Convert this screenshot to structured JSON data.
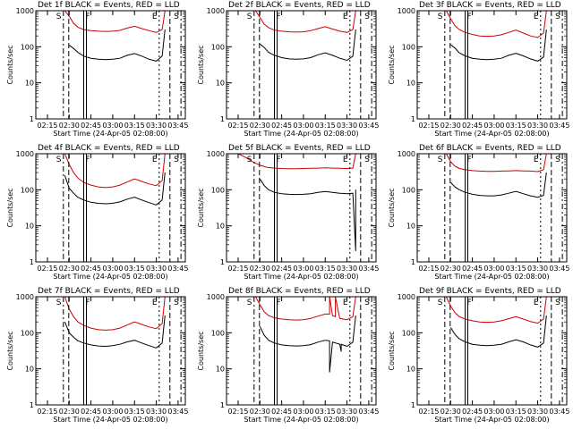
{
  "figure": {
    "common": {
      "ylabel": "Counts/sec",
      "xlabel": "Start Time (24-Apr-05 02:08:00)",
      "xticks": [
        "02:15",
        "02:30",
        "02:45",
        "03:00",
        "03:15",
        "03:30",
        "03:45"
      ],
      "xtick_minutes": [
        15,
        30,
        45,
        60,
        75,
        90,
        105
      ],
      "yticks": [
        "1",
        "10",
        "100",
        "1000"
      ],
      "ytick_values": [
        1,
        10,
        100,
        1000
      ],
      "xlim_minutes": [
        7,
        110
      ],
      "ylim": [
        1,
        1000
      ],
      "yscale": "log",
      "marker_labels": {
        "S": "S",
        "F": "F",
        "E": "E"
      },
      "colors": {
        "events": "#000000",
        "lld": "#cc0000",
        "axes": "#000000"
      }
    }
  },
  "chart_data": [
    {
      "type": "line",
      "title": "Det 1f BLACK = Events, RED = LLD",
      "xlabel": "Start Time (24-Apr-05 02:08:00)",
      "ylabel": "Counts/sec",
      "xlim": [
        "02:07",
        "03:50"
      ],
      "ylim": [
        1,
        1000
      ],
      "yscale": "log",
      "markers": {
        "S": "02:26",
        "F": "02:40",
        "E": "03:32",
        "S2": "03:47"
      },
      "series": [
        {
          "name": "BLACK = Events",
          "color": "#000000",
          "x": [
            "02:30",
            "02:33",
            "02:36",
            "02:40",
            "02:45",
            "02:50",
            "02:55",
            "03:00",
            "03:05",
            "03:10",
            "03:15",
            "03:20",
            "03:25",
            "03:30",
            "03:34",
            "03:36"
          ],
          "y": [
            110,
            90,
            70,
            55,
            48,
            45,
            44,
            45,
            48,
            58,
            65,
            55,
            45,
            40,
            55,
            300
          ]
        },
        {
          "name": "RED = LLD",
          "color": "#cc0000",
          "x": [
            "02:27",
            "02:30",
            "02:33",
            "02:36",
            "02:40",
            "02:45",
            "02:50",
            "02:55",
            "03:00",
            "03:05",
            "03:10",
            "03:15",
            "03:20",
            "03:25",
            "03:30",
            "03:34",
            "03:36"
          ],
          "y": [
            1000,
            700,
            450,
            350,
            300,
            280,
            270,
            265,
            270,
            285,
            330,
            370,
            320,
            280,
            250,
            300,
            1000
          ]
        }
      ]
    },
    {
      "type": "line",
      "title": "Det 2f BLACK = Events, RED = LLD",
      "xlabel": "Start Time (24-Apr-05 02:08:00)",
      "ylabel": "Counts/sec",
      "xlim": [
        "02:07",
        "03:50"
      ],
      "ylim": [
        1,
        1000
      ],
      "yscale": "log",
      "markers": {
        "S": "02:26",
        "F": "02:40",
        "E": "03:32",
        "S2": "03:47"
      },
      "series": [
        {
          "name": "BLACK = Events",
          "color": "#000000",
          "x": [
            "02:30",
            "02:33",
            "02:36",
            "02:40",
            "02:45",
            "02:50",
            "02:55",
            "03:00",
            "03:05",
            "03:10",
            "03:15",
            "03:20",
            "03:25",
            "03:30",
            "03:34",
            "03:36"
          ],
          "y": [
            120,
            95,
            70,
            58,
            50,
            46,
            45,
            46,
            50,
            60,
            68,
            58,
            48,
            42,
            55,
            300
          ]
        },
        {
          "name": "RED = LLD",
          "color": "#cc0000",
          "x": [
            "02:27",
            "02:30",
            "02:33",
            "02:36",
            "02:40",
            "02:45",
            "02:50",
            "02:55",
            "03:00",
            "03:05",
            "03:10",
            "03:15",
            "03:20",
            "03:25",
            "03:30",
            "03:34",
            "03:36"
          ],
          "y": [
            1000,
            650,
            420,
            340,
            290,
            270,
            260,
            255,
            260,
            280,
            320,
            360,
            310,
            270,
            250,
            300,
            1000
          ]
        }
      ]
    },
    {
      "type": "line",
      "title": "Det 3f BLACK = Events, RED = LLD",
      "xlabel": "Start Time (24-Apr-05 02:08:00)",
      "ylabel": "Counts/sec",
      "xlim": [
        "02:07",
        "03:50"
      ],
      "ylim": [
        1,
        1000
      ],
      "yscale": "log",
      "markers": {
        "S": "02:26",
        "F": "02:40",
        "E": "03:32",
        "S2": "03:47"
      },
      "series": [
        {
          "name": "BLACK = Events",
          "color": "#000000",
          "x": [
            "02:30",
            "02:33",
            "02:36",
            "02:40",
            "02:45",
            "02:50",
            "02:55",
            "03:00",
            "03:05",
            "03:10",
            "03:15",
            "03:20",
            "03:25",
            "03:30",
            "03:34",
            "03:36"
          ],
          "y": [
            115,
            92,
            68,
            56,
            48,
            45,
            44,
            45,
            48,
            58,
            66,
            56,
            46,
            40,
            52,
            300
          ]
        },
        {
          "name": "RED = LLD",
          "color": "#cc0000",
          "x": [
            "02:27",
            "02:30",
            "02:33",
            "02:36",
            "02:40",
            "02:45",
            "02:50",
            "02:55",
            "03:00",
            "03:05",
            "03:10",
            "03:15",
            "03:20",
            "03:25",
            "03:30",
            "03:34",
            "03:36"
          ],
          "y": [
            1000,
            600,
            380,
            300,
            250,
            220,
            200,
            195,
            200,
            215,
            250,
            290,
            240,
            200,
            180,
            240,
            1000
          ]
        }
      ]
    },
    {
      "type": "line",
      "title": "Det 4f BLACK = Events, RED = LLD",
      "xlabel": "Start Time (24-Apr-05 02:08:00)",
      "ylabel": "Counts/sec",
      "xlim": [
        "02:07",
        "03:50"
      ],
      "ylim": [
        1,
        1000
      ],
      "yscale": "log",
      "markers": {
        "S": "02:26",
        "F": "02:40",
        "E": "03:32",
        "S2": "03:47"
      },
      "series": [
        {
          "name": "BLACK = Events",
          "color": "#000000",
          "x": [
            "02:27",
            "02:30",
            "02:33",
            "02:36",
            "02:40",
            "02:45",
            "02:50",
            "02:55",
            "03:00",
            "03:05",
            "03:10",
            "03:15",
            "03:20",
            "03:25",
            "03:30",
            "03:34",
            "03:36"
          ],
          "y": [
            250,
            110,
            80,
            62,
            52,
            45,
            42,
            41,
            42,
            46,
            55,
            62,
            52,
            44,
            38,
            52,
            300
          ]
        },
        {
          "name": "RED = LLD",
          "color": "#cc0000",
          "x": [
            "02:27",
            "02:30",
            "02:33",
            "02:36",
            "02:40",
            "02:45",
            "02:50",
            "02:55",
            "03:00",
            "03:05",
            "03:10",
            "03:15",
            "03:20",
            "03:25",
            "03:30",
            "03:34",
            "03:36"
          ],
          "y": [
            1000,
            500,
            300,
            210,
            160,
            135,
            120,
            115,
            120,
            135,
            165,
            200,
            170,
            145,
            130,
            180,
            1000
          ]
        }
      ]
    },
    {
      "type": "line",
      "title": "Det 5f BLACK = Events, RED = LLD",
      "xlabel": "Start Time (24-Apr-05 02:08:00)",
      "ylabel": "Counts/sec",
      "xlim": [
        "02:07",
        "03:50"
      ],
      "ylim": [
        1,
        1000
      ],
      "yscale": "log",
      "markers": {
        "S": "02:26",
        "F": "02:40",
        "E": "03:32",
        "S2": "03:47"
      },
      "series": [
        {
          "name": "BLACK = Events",
          "color": "#000000",
          "x": [
            "02:30",
            "02:33",
            "02:36",
            "02:40",
            "02:45",
            "02:50",
            "02:55",
            "03:00",
            "03:05",
            "03:10",
            "03:15",
            "03:20",
            "03:25",
            "03:30",
            "03:34",
            "03:36",
            "03:36"
          ],
          "y": [
            200,
            130,
            100,
            85,
            78,
            75,
            74,
            75,
            78,
            85,
            90,
            85,
            80,
            78,
            80,
            2,
            100
          ]
        },
        {
          "name": "RED = LLD",
          "color": "#cc0000",
          "x": [
            "02:15",
            "02:20",
            "02:25",
            "02:30",
            "02:35",
            "02:40",
            "02:45",
            "02:50",
            "02:55",
            "03:00",
            "03:05",
            "03:10",
            "03:15",
            "03:20",
            "03:25",
            "03:30",
            "03:34",
            "03:36"
          ],
          "y": [
            1000,
            800,
            600,
            480,
            420,
            400,
            390,
            385,
            385,
            390,
            395,
            400,
            405,
            400,
            395,
            390,
            400,
            1000
          ]
        }
      ]
    },
    {
      "type": "line",
      "title": "Det 6f BLACK = Events, RED = LLD",
      "xlabel": "Start Time (24-Apr-05 02:08:00)",
      "ylabel": "Counts/sec",
      "xlim": [
        "02:07",
        "03:50"
      ],
      "ylim": [
        1,
        1000
      ],
      "yscale": "log",
      "markers": {
        "S": "02:26",
        "F": "02:40",
        "E": "03:32",
        "S2": "03:47"
      },
      "series": [
        {
          "name": "BLACK = Events",
          "color": "#000000",
          "x": [
            "02:30",
            "02:33",
            "02:36",
            "02:40",
            "02:45",
            "02:50",
            "02:55",
            "03:00",
            "03:05",
            "03:10",
            "03:15",
            "03:20",
            "03:25",
            "03:30",
            "03:34",
            "03:36"
          ],
          "y": [
            160,
            120,
            100,
            85,
            75,
            70,
            68,
            68,
            72,
            80,
            90,
            78,
            68,
            62,
            70,
            300
          ]
        },
        {
          "name": "RED = LLD",
          "color": "#cc0000",
          "x": [
            "02:27",
            "02:30",
            "02:33",
            "02:36",
            "02:40",
            "02:45",
            "02:50",
            "02:55",
            "03:00",
            "03:05",
            "03:10",
            "03:15",
            "03:20",
            "03:25",
            "03:30",
            "03:34",
            "03:36"
          ],
          "y": [
            1000,
            600,
            450,
            390,
            360,
            340,
            330,
            325,
            325,
            330,
            335,
            340,
            335,
            330,
            320,
            360,
            1000
          ]
        }
      ]
    },
    {
      "type": "line",
      "title": "Det 7f BLACK = Events, RED = LLD",
      "xlabel": "Start Time (24-Apr-05 02:08:00)",
      "ylabel": "Counts/sec",
      "xlim": [
        "02:07",
        "03:50"
      ],
      "ylim": [
        1,
        1000
      ],
      "yscale": "log",
      "markers": {
        "S": "02:26",
        "F": "02:40",
        "E": "03:32",
        "S2": "03:47"
      },
      "series": [
        {
          "name": "BLACK = Events",
          "color": "#000000",
          "x": [
            "02:27",
            "02:30",
            "02:33",
            "02:36",
            "02:40",
            "02:45",
            "02:50",
            "02:55",
            "03:00",
            "03:05",
            "03:10",
            "03:15",
            "03:20",
            "03:25",
            "03:30",
            "03:34",
            "03:36"
          ],
          "y": [
            200,
            100,
            75,
            60,
            52,
            46,
            43,
            42,
            44,
            48,
            56,
            62,
            52,
            44,
            38,
            52,
            300
          ]
        },
        {
          "name": "RED = LLD",
          "color": "#cc0000",
          "x": [
            "02:27",
            "02:30",
            "02:33",
            "02:36",
            "02:40",
            "02:45",
            "02:50",
            "02:55",
            "03:00",
            "03:05",
            "03:10",
            "03:15",
            "03:20",
            "03:25",
            "03:30",
            "03:34",
            "03:36"
          ],
          "y": [
            1000,
            450,
            280,
            200,
            160,
            135,
            122,
            118,
            122,
            135,
            165,
            200,
            170,
            145,
            130,
            180,
            1000
          ]
        }
      ]
    },
    {
      "type": "line",
      "title": "Det 8f BLACK = Events, RED = LLD",
      "xlabel": "Start Time (24-Apr-05 02:08:00)",
      "ylabel": "Counts/sec",
      "xlim": [
        "02:07",
        "03:50"
      ],
      "ylim": [
        1,
        1000
      ],
      "yscale": "log",
      "markers": {
        "S": "02:26",
        "F": "02:40",
        "E": "03:32",
        "S2": "03:47"
      },
      "series": [
        {
          "name": "BLACK = Events",
          "color": "#000000",
          "x": [
            "02:30",
            "02:33",
            "02:36",
            "02:40",
            "02:45",
            "02:50",
            "02:55",
            "03:00",
            "03:05",
            "03:10",
            "03:15",
            "03:18",
            "03:18",
            "03:20",
            "03:25",
            "03:26",
            "03:26",
            "03:30",
            "03:34",
            "03:36"
          ],
          "y": [
            150,
            85,
            62,
            52,
            46,
            44,
            43,
            44,
            47,
            55,
            62,
            60,
            8,
            55,
            48,
            30,
            48,
            42,
            55,
            300
          ]
        },
        {
          "name": "RED = LLD",
          "color": "#cc0000",
          "x": [
            "02:27",
            "02:30",
            "02:33",
            "02:36",
            "02:40",
            "02:45",
            "02:50",
            "02:55",
            "03:00",
            "03:05",
            "03:10",
            "03:15",
            "03:18",
            "03:18",
            "03:20",
            "03:22",
            "03:22",
            "03:25",
            "03:30",
            "03:34",
            "03:36"
          ],
          "y": [
            1000,
            600,
            380,
            300,
            260,
            240,
            230,
            225,
            230,
            250,
            290,
            330,
            330,
            1000,
            300,
            280,
            1000,
            250,
            230,
            280,
            1000
          ]
        }
      ]
    },
    {
      "type": "line",
      "title": "Det 9f BLACK = Events, RED = LLD",
      "xlabel": "Start Time (24-Apr-05 02:08:00)",
      "ylabel": "Counts/sec",
      "xlim": [
        "02:07",
        "03:50"
      ],
      "ylim": [
        1,
        1000
      ],
      "yscale": "log",
      "markers": {
        "S": "02:26",
        "F": "02:40",
        "E": "03:32",
        "S2": "03:47"
      },
      "series": [
        {
          "name": "BLACK = Events",
          "color": "#000000",
          "x": [
            "02:30",
            "02:33",
            "02:36",
            "02:40",
            "02:45",
            "02:50",
            "02:55",
            "03:00",
            "03:05",
            "03:10",
            "03:15",
            "03:20",
            "03:25",
            "03:30",
            "03:34",
            "03:36"
          ],
          "y": [
            140,
            90,
            68,
            56,
            48,
            45,
            44,
            45,
            48,
            56,
            64,
            56,
            46,
            40,
            52,
            300
          ]
        },
        {
          "name": "RED = LLD",
          "color": "#cc0000",
          "x": [
            "02:27",
            "02:30",
            "02:33",
            "02:36",
            "02:40",
            "02:45",
            "02:50",
            "02:55",
            "03:00",
            "03:05",
            "03:10",
            "03:15",
            "03:20",
            "03:25",
            "03:30",
            "03:34",
            "03:36"
          ],
          "y": [
            1000,
            550,
            360,
            280,
            240,
            215,
            200,
            195,
            200,
            215,
            245,
            280,
            240,
            205,
            185,
            240,
            1000
          ]
        }
      ]
    }
  ]
}
